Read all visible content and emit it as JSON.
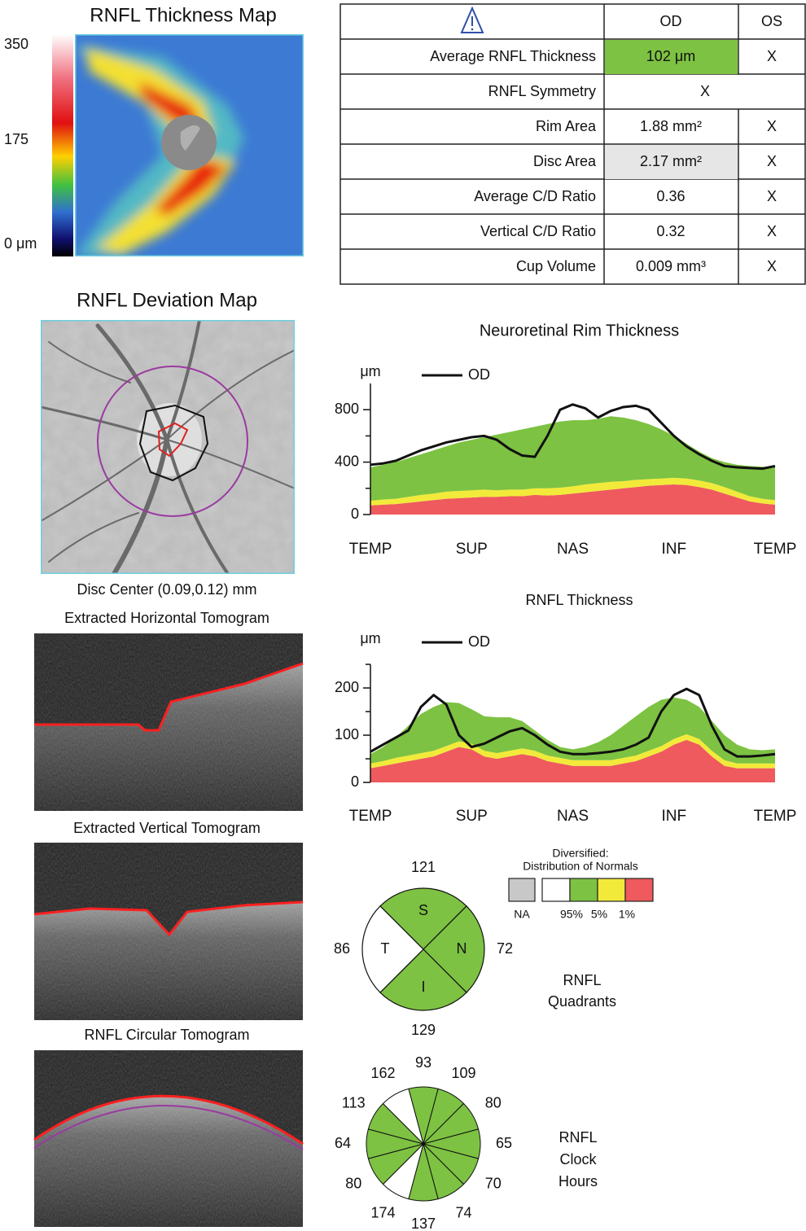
{
  "thickness_map": {
    "title": "RNFL Thickness Map",
    "scale_labels": [
      "350",
      "175",
      "0 μm"
    ]
  },
  "parameters": {
    "columns": [
      "OD",
      "OS"
    ],
    "rows": [
      {
        "label": "Average RNFL Thickness",
        "od": "102 μm",
        "os": "X",
        "od_color": "#7dc242"
      },
      {
        "label": "RNFL Symmetry",
        "both": "X"
      },
      {
        "label": "Rim Area",
        "od": "1.88 mm²",
        "os": "X"
      },
      {
        "label": "Disc Area",
        "od": "2.17 mm²",
        "os": "X",
        "od_color": "#e6e6e6"
      },
      {
        "label": "Average C/D Ratio",
        "od": "0.36",
        "os": "X"
      },
      {
        "label": "Vertical C/D Ratio",
        "od": "0.32",
        "os": "X"
      },
      {
        "label": "Cup Volume",
        "od": "0.009 mm³",
        "os": "X"
      }
    ]
  },
  "deviation_map": {
    "title": "RNFL Deviation Map",
    "caption": "Disc Center (0.09,0.12) mm"
  },
  "tomograms": [
    {
      "title": "Extracted Horizontal Tomogram"
    },
    {
      "title": "Extracted Vertical Tomogram"
    },
    {
      "title": "RNFL Circular Tomogram"
    }
  ],
  "chart_data": [
    {
      "type": "area",
      "title": "Neuroretinal Rim Thickness",
      "y_label": "μm",
      "categories": [
        "TEMP",
        null,
        null,
        null,
        null,
        null,
        null,
        null,
        "SUP",
        null,
        null,
        null,
        null,
        null,
        null,
        null,
        "NAS",
        null,
        null,
        null,
        null,
        null,
        null,
        null,
        "INF",
        null,
        null,
        null,
        null,
        null,
        null,
        null,
        "TEMP"
      ],
      "ylim": [
        0,
        1000
      ],
      "yticks": [
        0,
        400,
        800
      ],
      "yminor": [
        200,
        600
      ],
      "bands": [
        {
          "color": "#ee5a5e",
          "values": [
            70,
            75,
            80,
            90,
            100,
            110,
            120,
            125,
            130,
            135,
            135,
            140,
            140,
            150,
            145,
            150,
            160,
            170,
            180,
            190,
            200,
            210,
            220,
            225,
            230,
            225,
            210,
            190,
            160,
            130,
            100,
            85,
            75
          ]
        },
        {
          "color": "#f2ea3a",
          "values": [
            35,
            40,
            40,
            45,
            50,
            50,
            55,
            55,
            55,
            55,
            50,
            50,
            50,
            50,
            55,
            55,
            55,
            60,
            60,
            60,
            55,
            55,
            50,
            50,
            50,
            50,
            50,
            50,
            50,
            45,
            40,
            35,
            35
          ]
        },
        {
          "color": "#7dc242",
          "values": [
            255,
            265,
            280,
            295,
            310,
            330,
            345,
            370,
            385,
            400,
            425,
            440,
            460,
            470,
            490,
            505,
            505,
            490,
            490,
            500,
            485,
            455,
            420,
            375,
            320,
            265,
            220,
            190,
            190,
            205,
            230,
            245,
            250
          ]
        }
      ],
      "series": [
        {
          "name": "OD",
          "color": "#111111",
          "values": [
            380,
            390,
            410,
            450,
            490,
            520,
            550,
            570,
            590,
            600,
            570,
            500,
            450,
            440,
            600,
            800,
            840,
            810,
            740,
            790,
            820,
            830,
            800,
            700,
            600,
            520,
            460,
            410,
            370,
            360,
            355,
            350,
            370
          ]
        }
      ]
    },
    {
      "type": "area",
      "title": "RNFL Thickness",
      "y_label": "μm",
      "categories": [
        "TEMP",
        null,
        null,
        null,
        null,
        null,
        null,
        null,
        "SUP",
        null,
        null,
        null,
        null,
        null,
        null,
        null,
        "NAS",
        null,
        null,
        null,
        null,
        null,
        null,
        null,
        "INF",
        null,
        null,
        null,
        null,
        null,
        null,
        null,
        "TEMP"
      ],
      "ylim": [
        0,
        250
      ],
      "yticks": [
        0,
        100,
        200
      ],
      "yminor": [
        50,
        150,
        250
      ],
      "bands": [
        {
          "color": "#ee5a5e",
          "values": [
            30,
            35,
            40,
            45,
            50,
            55,
            65,
            75,
            70,
            55,
            50,
            55,
            60,
            55,
            45,
            40,
            35,
            35,
            35,
            35,
            40,
            45,
            55,
            65,
            80,
            90,
            80,
            55,
            35,
            30,
            30,
            30,
            30
          ]
        },
        {
          "color": "#f2ea3a",
          "values": [
            10,
            10,
            12,
            12,
            12,
            12,
            12,
            12,
            12,
            12,
            12,
            12,
            12,
            12,
            12,
            12,
            12,
            12,
            12,
            12,
            12,
            12,
            12,
            12,
            12,
            12,
            12,
            12,
            12,
            10,
            10,
            10,
            10
          ]
        },
        {
          "color": "#7dc242",
          "values": [
            20,
            30,
            43,
            63,
            83,
            93,
            93,
            81,
            73,
            73,
            76,
            71,
            58,
            43,
            33,
            23,
            23,
            28,
            38,
            53,
            68,
            83,
            93,
            98,
            88,
            73,
            68,
            63,
            53,
            40,
            30,
            28,
            30
          ]
        }
      ],
      "series": [
        {
          "name": "OD",
          "color": "#111111",
          "values": [
            65,
            80,
            95,
            110,
            160,
            185,
            165,
            100,
            75,
            82,
            95,
            108,
            115,
            100,
            80,
            65,
            60,
            60,
            62,
            65,
            70,
            80,
            95,
            150,
            185,
            198,
            185,
            120,
            70,
            55,
            55,
            57,
            60
          ]
        }
      ]
    }
  ],
  "legend": {
    "title": [
      "Diversified:",
      "Distribution of Normals"
    ],
    "boxes": [
      {
        "color": "#c8c8c8",
        "label": "NA"
      },
      {
        "color": "#ffffff"
      },
      {
        "color": "#7dc242"
      },
      {
        "color": "#f2ea3a"
      },
      {
        "color": "#ee5a5e"
      }
    ],
    "boundary_labels": [
      "95%",
      "5%",
      "1%"
    ]
  },
  "quadrants": {
    "label": [
      "RNFL",
      "Quadrants"
    ],
    "sectors": [
      {
        "letter": "S",
        "value": 121,
        "color": "#7dc242"
      },
      {
        "letter": "N",
        "value": 72,
        "color": "#7dc242"
      },
      {
        "letter": "I",
        "value": 129,
        "color": "#7dc242"
      },
      {
        "letter": "T",
        "value": 86,
        "color": "#ffffff"
      }
    ]
  },
  "clock_hours": {
    "label": [
      "RNFL",
      "Clock",
      "Hours"
    ],
    "values": [
      93,
      109,
      80,
      65,
      70,
      74,
      137,
      174,
      80,
      64,
      113,
      162
    ],
    "colors": [
      "#7dc242",
      "#7dc242",
      "#7dc242",
      "#7dc242",
      "#7dc242",
      "#7dc242",
      "#7dc242",
      "#ffffff",
      "#7dc242",
      "#7dc242",
      "#7dc242",
      "#ffffff"
    ]
  }
}
